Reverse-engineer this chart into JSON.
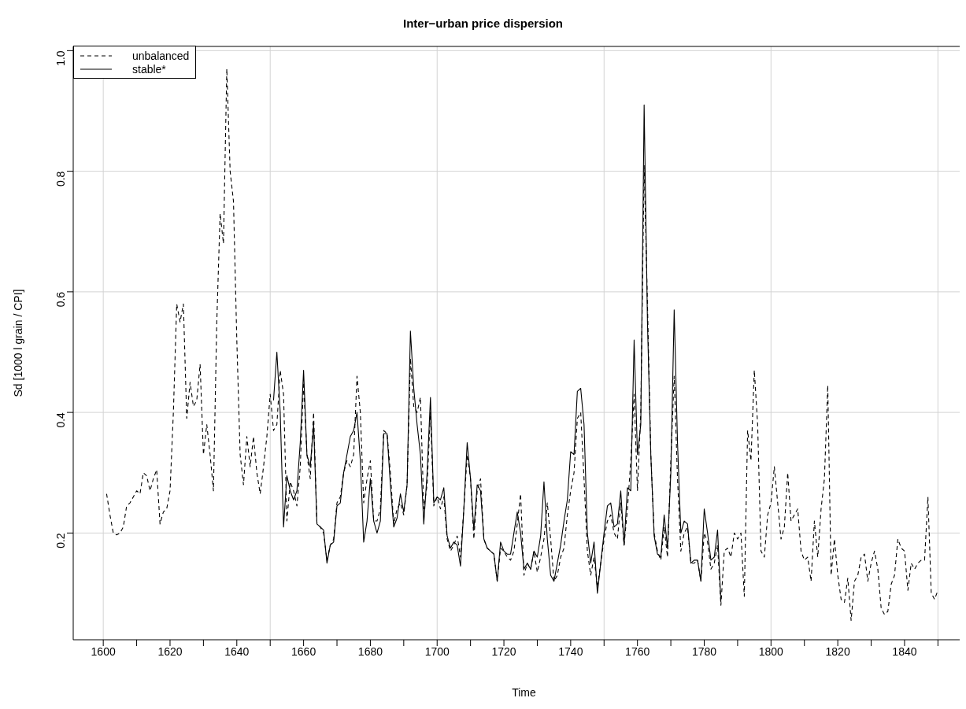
{
  "chart_data": {
    "type": "line",
    "title": "Inter−urban price dispersion",
    "xlabel": "Time",
    "ylabel": "Sd [1000 l grain / CPI]",
    "xlim": [
      1591,
      1861
    ],
    "ylim": [
      0.023,
      1.007
    ],
    "xticks": [
      1600,
      {
        "value": 1610,
        "label": null
      },
      1620,
      {
        "value": 1630,
        "label": null
      },
      1640,
      {
        "value": 1650,
        "label": null
      },
      1660,
      {
        "value": 1670,
        "label": null
      },
      1680,
      {
        "value": 1690,
        "label": null
      },
      1700,
      {
        "value": 1710,
        "label": null
      },
      1720,
      {
        "value": 1730,
        "label": null
      },
      1740,
      {
        "value": 1750,
        "label": null
      },
      1760,
      {
        "value": 1770,
        "label": null
      },
      1780,
      {
        "value": 1790,
        "label": null
      },
      1800,
      {
        "value": 1810,
        "label": null
      },
      1820,
      {
        "value": 1830,
        "label": null
      },
      1840,
      {
        "value": 1850,
        "label": null
      }
    ],
    "yticks": [
      0.2,
      0.4,
      0.6,
      0.8,
      {
        "value": 1.0,
        "label": "1.0"
      }
    ],
    "grid": true,
    "legend": "top left",
    "marker": "none",
    "series": [
      {
        "name": "unbalanced",
        "color": "#000000",
        "line_style": "dashed",
        "x": [
          1601,
          1602,
          1603,
          1604,
          1605,
          1606,
          1607,
          1608,
          1609,
          1610,
          1611,
          1612,
          1613,
          1614,
          1615,
          1616,
          1617,
          1618,
          1619,
          1620,
          1621,
          1622,
          1623,
          1624,
          1625,
          1626,
          1627,
          1628,
          1629,
          1630,
          1631,
          1632,
          1633,
          1634,
          1635,
          1636,
          1637,
          1638,
          1639,
          1640,
          1641,
          1642,
          1643,
          1644,
          1645,
          1646,
          1647,
          1648,
          1649,
          1650,
          1651,
          1652,
          1653,
          1654,
          1655,
          1656,
          1657,
          1658,
          1659,
          1660,
          1661,
          1662,
          1663,
          1664,
          1665,
          1666,
          1667,
          1668,
          1669,
          1670,
          1671,
          1672,
          1673,
          1674,
          1675,
          1676,
          1677,
          1678,
          1679,
          1680,
          1681,
          1682,
          1683,
          1684,
          1685,
          1686,
          1687,
          1688,
          1689,
          1690,
          1691,
          1692,
          1693,
          1694,
          1695,
          1696,
          1697,
          1698,
          1699,
          1700,
          1701,
          1702,
          1703,
          1704,
          1705,
          1706,
          1707,
          1708,
          1709,
          1710,
          1711,
          1712,
          1713,
          1714,
          1715,
          1716,
          1717,
          1718,
          1719,
          1720,
          1721,
          1722,
          1723,
          1724,
          1725,
          1726,
          1727,
          1728,
          1729,
          1730,
          1731,
          1732,
          1733,
          1734,
          1735,
          1736,
          1737,
          1738,
          1739,
          1740,
          1741,
          1742,
          1743,
          1744,
          1745,
          1746,
          1747,
          1748,
          1749,
          1750,
          1751,
          1752,
          1753,
          1754,
          1755,
          1756,
          1757,
          1758,
          1759,
          1760,
          1761,
          1762,
          1763,
          1764,
          1765,
          1766,
          1767,
          1768,
          1769,
          1770,
          1771,
          1772,
          1773,
          1774,
          1775,
          1776,
          1777,
          1778,
          1779,
          1780,
          1781,
          1782,
          1783,
          1784,
          1785,
          1786,
          1787,
          1788,
          1789,
          1790,
          1791,
          1792,
          1793,
          1794,
          1795,
          1796,
          1797,
          1798,
          1799,
          1800,
          1801,
          1802,
          1803,
          1804,
          1805,
          1806,
          1807,
          1808,
          1809,
          1810,
          1811,
          1812,
          1813,
          1814,
          1815,
          1816,
          1817,
          1818,
          1819,
          1820,
          1821,
          1822,
          1823,
          1824,
          1825,
          1826,
          1827,
          1828,
          1829,
          1830,
          1831,
          1832,
          1833,
          1834,
          1835,
          1836,
          1837,
          1838,
          1839,
          1840,
          1841,
          1842,
          1843,
          1844,
          1845,
          1846,
          1847,
          1848,
          1849,
          1850
        ],
        "values": [
          0.265,
          0.23,
          0.2,
          0.197,
          0.2,
          0.21,
          0.245,
          0.25,
          0.26,
          0.27,
          0.265,
          0.3,
          0.295,
          0.27,
          0.29,
          0.305,
          0.215,
          0.235,
          0.24,
          0.27,
          0.4,
          0.58,
          0.55,
          0.58,
          0.39,
          0.45,
          0.41,
          0.42,
          0.48,
          0.33,
          0.38,
          0.33,
          0.27,
          0.55,
          0.73,
          0.68,
          0.97,
          0.8,
          0.75,
          0.52,
          0.33,
          0.28,
          0.36,
          0.31,
          0.36,
          0.3,
          0.265,
          0.31,
          0.36,
          0.43,
          0.37,
          0.38,
          0.47,
          0.43,
          0.22,
          0.285,
          0.27,
          0.245,
          0.31,
          0.45,
          0.33,
          0.29,
          0.4,
          0.215,
          0.21,
          0.2,
          0.155,
          0.18,
          0.19,
          0.25,
          0.26,
          0.3,
          0.32,
          0.31,
          0.33,
          0.46,
          0.4,
          0.25,
          0.29,
          0.32,
          0.22,
          0.22,
          0.24,
          0.37,
          0.365,
          0.3,
          0.215,
          0.24,
          0.25,
          0.23,
          0.28,
          0.49,
          0.41,
          0.4,
          0.425,
          0.24,
          0.28,
          0.4,
          0.245,
          0.26,
          0.24,
          0.26,
          0.19,
          0.17,
          0.18,
          0.195,
          0.16,
          0.24,
          0.33,
          0.29,
          0.19,
          0.27,
          0.29,
          0.19,
          0.175,
          0.17,
          0.165,
          0.12,
          0.175,
          0.17,
          0.16,
          0.155,
          0.17,
          0.215,
          0.265,
          0.13,
          0.15,
          0.14,
          0.17,
          0.135,
          0.16,
          0.19,
          0.25,
          0.19,
          0.12,
          0.13,
          0.16,
          0.175,
          0.23,
          0.27,
          0.3,
          0.39,
          0.4,
          0.29,
          0.17,
          0.13,
          0.16,
          0.11,
          0.15,
          0.19,
          0.22,
          0.23,
          0.2,
          0.19,
          0.25,
          0.18,
          0.24,
          0.32,
          0.43,
          0.27,
          0.4,
          0.81,
          0.58,
          0.33,
          0.2,
          0.17,
          0.155,
          0.21,
          0.16,
          0.32,
          0.46,
          0.29,
          0.17,
          0.2,
          0.21,
          0.15,
          0.15,
          0.155,
          0.12,
          0.2,
          0.185,
          0.14,
          0.15,
          0.18,
          0.08,
          0.17,
          0.175,
          0.16,
          0.2,
          0.19,
          0.2,
          0.095,
          0.37,
          0.32,
          0.47,
          0.38,
          0.17,
          0.16,
          0.23,
          0.25,
          0.31,
          0.25,
          0.19,
          0.21,
          0.3,
          0.22,
          0.23,
          0.24,
          0.17,
          0.155,
          0.16,
          0.12,
          0.22,
          0.16,
          0.24,
          0.29,
          0.445,
          0.13,
          0.19,
          0.13,
          0.09,
          0.085,
          0.125,
          0.055,
          0.12,
          0.13,
          0.16,
          0.165,
          0.12,
          0.15,
          0.17,
          0.14,
          0.075,
          0.065,
          0.07,
          0.115,
          0.13,
          0.19,
          0.175,
          0.17,
          0.105,
          0.15,
          0.14,
          0.15,
          0.155,
          0.155,
          0.26,
          0.1,
          0.09,
          0.105
        ]
      },
      {
        "name": "stable*",
        "color": "#000000",
        "line_style": "solid",
        "x": [
          1651,
          1652,
          1653,
          1654,
          1655,
          1656,
          1657,
          1658,
          1659,
          1660,
          1661,
          1662,
          1663,
          1664,
          1665,
          1666,
          1667,
          1668,
          1669,
          1670,
          1671,
          1672,
          1673,
          1674,
          1675,
          1676,
          1677,
          1678,
          1679,
          1680,
          1681,
          1682,
          1683,
          1684,
          1685,
          1686,
          1687,
          1688,
          1689,
          1690,
          1691,
          1692,
          1693,
          1694,
          1695,
          1696,
          1697,
          1698,
          1699,
          1700,
          1701,
          1702,
          1703,
          1704,
          1705,
          1706,
          1707,
          1708,
          1709,
          1710,
          1711,
          1712,
          1713,
          1714,
          1715,
          1716,
          1717,
          1718,
          1719,
          1720,
          1721,
          1722,
          1723,
          1724,
          1725,
          1726,
          1727,
          1728,
          1729,
          1730,
          1731,
          1732,
          1733,
          1734,
          1735,
          1736,
          1737,
          1738,
          1739,
          1740,
          1741,
          1742,
          1743,
          1744,
          1745,
          1746,
          1747,
          1748,
          1749,
          1750,
          1751,
          1752,
          1753,
          1754,
          1755,
          1756,
          1757,
          1758,
          1759,
          1760,
          1761,
          1762,
          1763,
          1764,
          1765,
          1766,
          1767,
          1768,
          1769,
          1770,
          1771,
          1772,
          1773,
          1774,
          1775,
          1776,
          1777,
          1778,
          1779,
          1780,
          1781,
          1782,
          1783,
          1784,
          1785
        ],
        "values": [
          0.42,
          0.5,
          0.4,
          0.21,
          0.295,
          0.27,
          0.255,
          0.27,
          0.35,
          0.47,
          0.33,
          0.31,
          0.38,
          0.215,
          0.21,
          0.205,
          0.15,
          0.18,
          0.185,
          0.245,
          0.25,
          0.3,
          0.33,
          0.36,
          0.37,
          0.4,
          0.32,
          0.185,
          0.22,
          0.29,
          0.22,
          0.2,
          0.22,
          0.365,
          0.365,
          0.28,
          0.21,
          0.225,
          0.265,
          0.235,
          0.28,
          0.535,
          0.44,
          0.38,
          0.33,
          0.215,
          0.3,
          0.425,
          0.25,
          0.26,
          0.255,
          0.275,
          0.195,
          0.175,
          0.185,
          0.18,
          0.145,
          0.24,
          0.35,
          0.29,
          0.205,
          0.28,
          0.27,
          0.19,
          0.175,
          0.17,
          0.165,
          0.12,
          0.185,
          0.17,
          0.165,
          0.165,
          0.2,
          0.235,
          0.2,
          0.14,
          0.15,
          0.14,
          0.17,
          0.16,
          0.195,
          0.285,
          0.19,
          0.13,
          0.12,
          0.15,
          0.18,
          0.22,
          0.255,
          0.335,
          0.33,
          0.435,
          0.44,
          0.38,
          0.2,
          0.15,
          0.185,
          0.1,
          0.15,
          0.2,
          0.245,
          0.25,
          0.21,
          0.215,
          0.27,
          0.18,
          0.275,
          0.27,
          0.52,
          0.33,
          0.38,
          0.91,
          0.55,
          0.33,
          0.195,
          0.165,
          0.16,
          0.23,
          0.175,
          0.3,
          0.57,
          0.35,
          0.2,
          0.22,
          0.215,
          0.15,
          0.155,
          0.155,
          0.12,
          0.24,
          0.2,
          0.155,
          0.16,
          0.205,
          0.085
        ]
      }
    ]
  }
}
